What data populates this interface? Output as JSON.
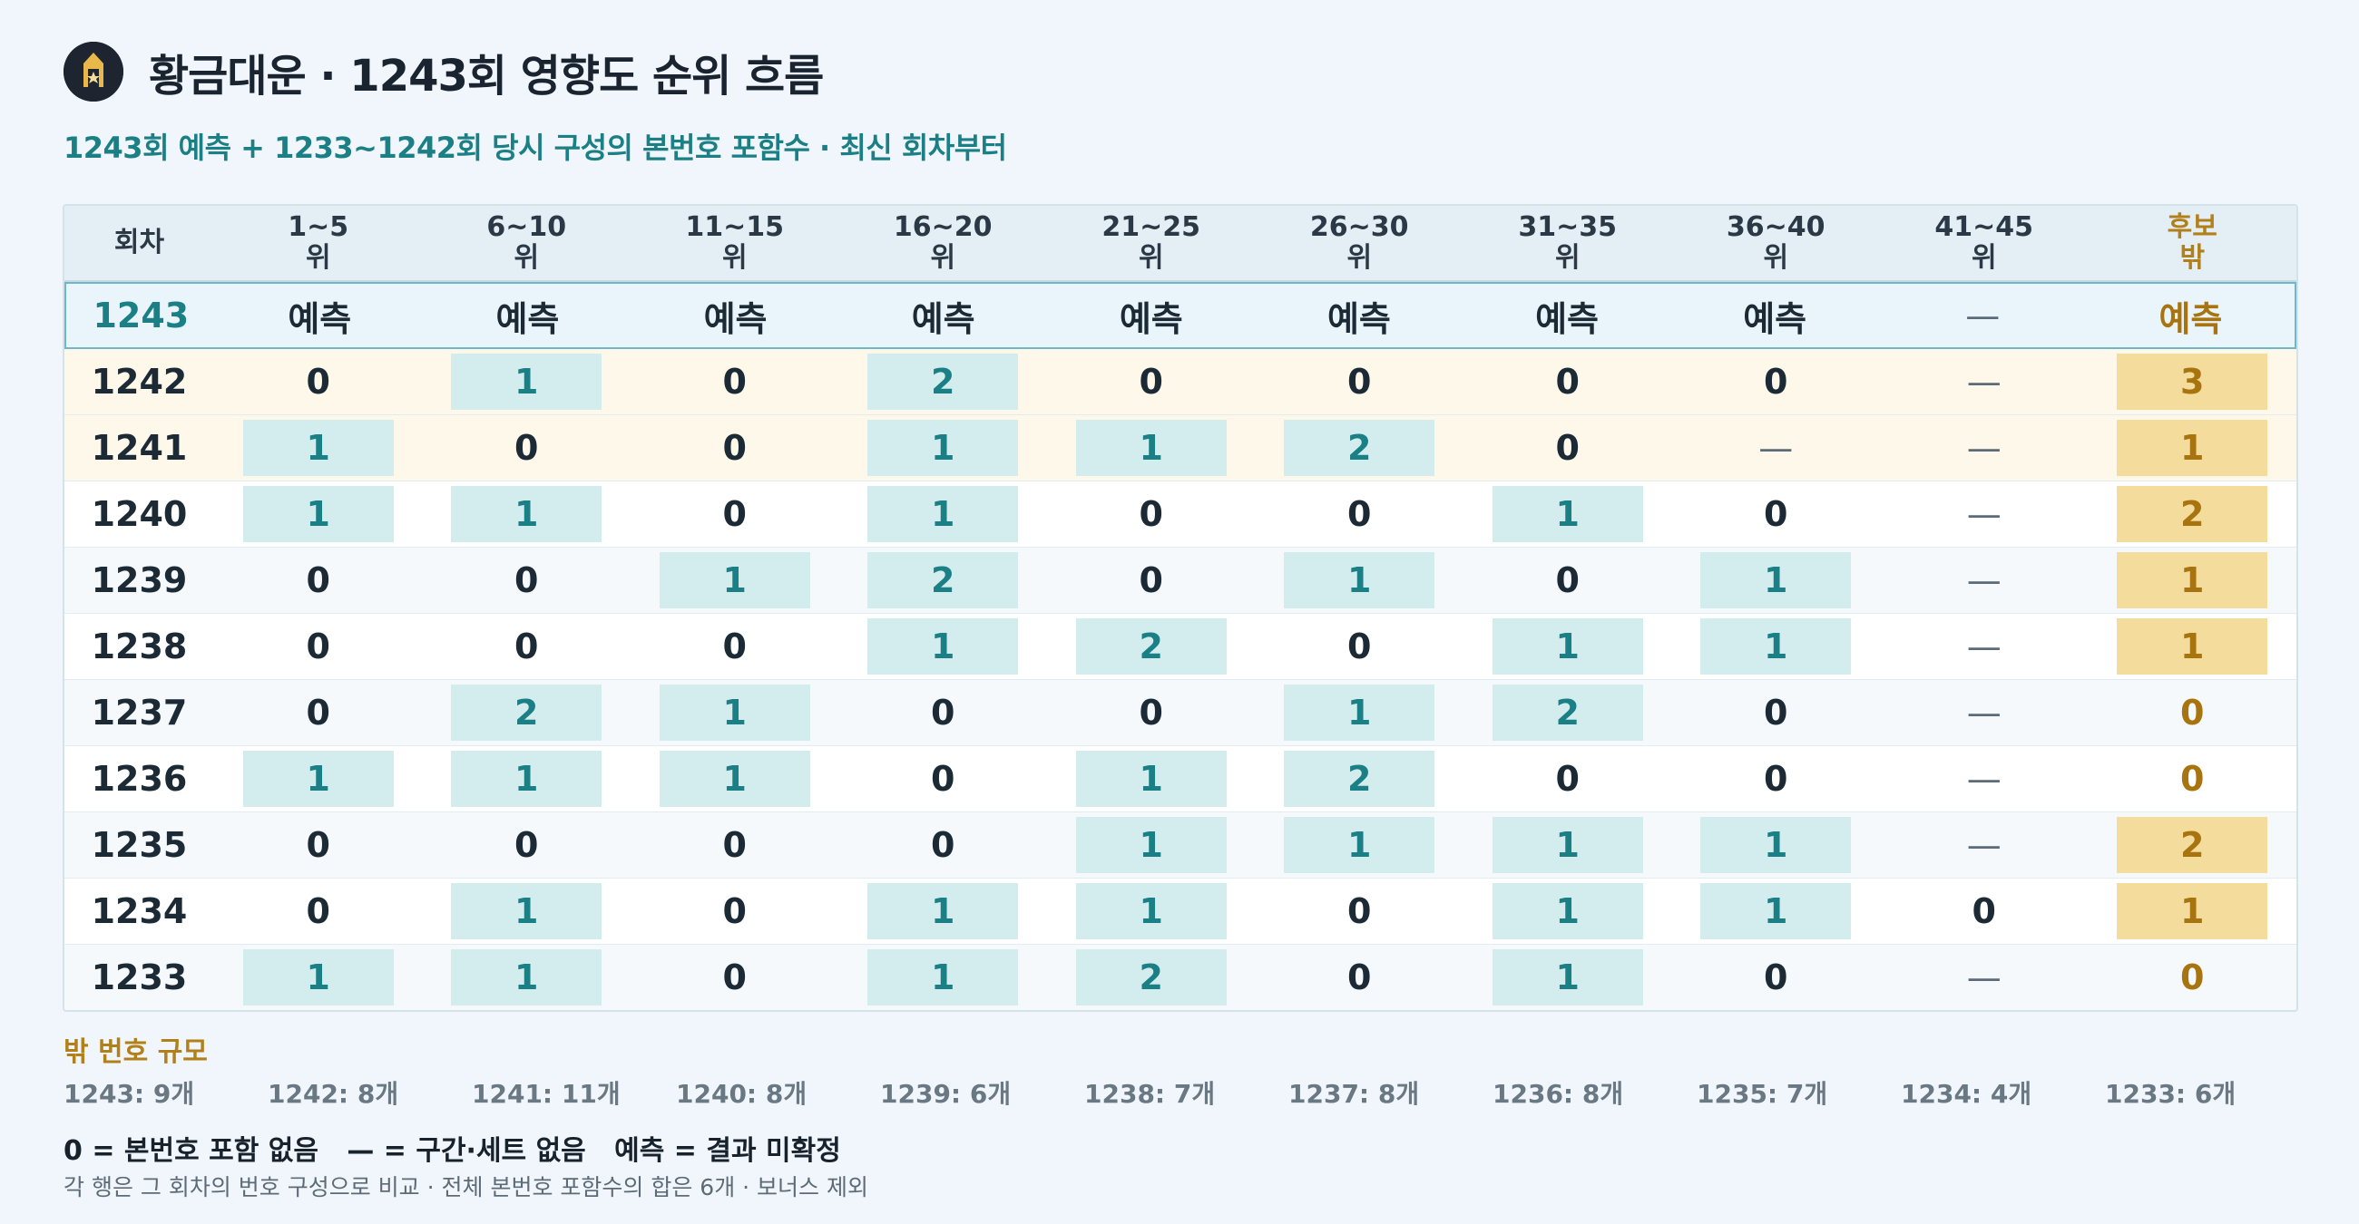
{
  "header": {
    "title": "황금대운 · 1243회 영향도 순위 흐름",
    "subtitle": "1243회 예측 + 1233~1242회 당시 구성의 본번호 포함수 · 최신 회차부터"
  },
  "table": {
    "columns": [
      {
        "l1": "회차",
        "l2": ""
      },
      {
        "l1": "1~5",
        "l2": "위"
      },
      {
        "l1": "6~10",
        "l2": "위"
      },
      {
        "l1": "11~15",
        "l2": "위"
      },
      {
        "l1": "16~20",
        "l2": "위"
      },
      {
        "l1": "21~25",
        "l2": "위"
      },
      {
        "l1": "26~30",
        "l2": "위"
      },
      {
        "l1": "31~35",
        "l2": "위"
      },
      {
        "l1": "36~40",
        "l2": "위"
      },
      {
        "l1": "41~45",
        "l2": "위"
      },
      {
        "l1": "후보",
        "l2": "밖"
      }
    ],
    "rows": [
      {
        "round": "1243",
        "cells": [
          "예측",
          "예측",
          "예측",
          "예측",
          "예측",
          "예측",
          "예측",
          "예측",
          "—",
          "예측"
        ]
      },
      {
        "round": "1242",
        "cells": [
          "0",
          "1",
          "0",
          "2",
          "0",
          "0",
          "0",
          "0",
          "—",
          "3"
        ]
      },
      {
        "round": "1241",
        "cells": [
          "1",
          "0",
          "0",
          "1",
          "1",
          "2",
          "0",
          "—",
          "—",
          "1"
        ]
      },
      {
        "round": "1240",
        "cells": [
          "1",
          "1",
          "0",
          "1",
          "0",
          "0",
          "1",
          "0",
          "—",
          "2"
        ]
      },
      {
        "round": "1239",
        "cells": [
          "0",
          "0",
          "1",
          "2",
          "0",
          "1",
          "0",
          "1",
          "—",
          "1"
        ]
      },
      {
        "round": "1238",
        "cells": [
          "0",
          "0",
          "0",
          "1",
          "2",
          "0",
          "1",
          "1",
          "—",
          "1"
        ]
      },
      {
        "round": "1237",
        "cells": [
          "0",
          "2",
          "1",
          "0",
          "0",
          "1",
          "2",
          "0",
          "—",
          "0"
        ]
      },
      {
        "round": "1236",
        "cells": [
          "1",
          "1",
          "1",
          "0",
          "1",
          "2",
          "0",
          "0",
          "—",
          "0"
        ]
      },
      {
        "round": "1235",
        "cells": [
          "0",
          "0",
          "0",
          "0",
          "1",
          "1",
          "1",
          "1",
          "—",
          "2"
        ]
      },
      {
        "round": "1234",
        "cells": [
          "0",
          "1",
          "0",
          "1",
          "1",
          "0",
          "1",
          "1",
          "0",
          "1"
        ]
      },
      {
        "round": "1233",
        "cells": [
          "1",
          "1",
          "0",
          "1",
          "2",
          "0",
          "1",
          "0",
          "—",
          "0"
        ]
      }
    ]
  },
  "scale": {
    "title": "밖 번호 규모",
    "items": [
      "1243: 9개",
      "1242: 8개",
      "1241: 11개",
      "1240: 8개",
      "1239: 6개",
      "1238: 7개",
      "1237: 8개",
      "1236: 8개",
      "1235: 7개",
      "1234: 4개",
      "1233: 6개"
    ]
  },
  "legend": "0 = 본번호 포함 없음   — = 구간·세트 없음   예측 = 결과 미확정",
  "note": "각 행은 그 회차의 번호 구성으로 비교 · 전체 본번호 포함수의 합은 6개 · 보너스 제외",
  "colors": {
    "accent": "#1b7f86",
    "gold": "#b2801a",
    "chip": "#d3ecee",
    "chip_gold": "#f3dc9c",
    "background": "#f0f6fb"
  },
  "icons": {
    "logo": "fortune-logo-icon"
  }
}
